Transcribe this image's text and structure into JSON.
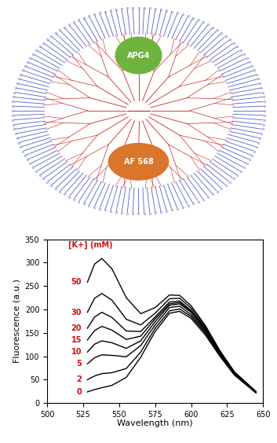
{
  "diagram": {
    "labels": [
      "APG4",
      "AF 568"
    ]
  },
  "chart_data": {
    "type": "line",
    "legend_title": "[K+] (mM)",
    "x_label": "Wavelength (nm)",
    "y_label": "Fluorescence (a.u.)",
    "x": [
      528,
      533,
      538,
      545,
      555,
      565,
      575,
      585,
      592,
      600,
      610,
      620,
      630,
      645
    ],
    "series": [
      {
        "name": "50",
        "color": "#000000",
        "values": [
          258,
          297,
          309,
          287,
          225,
          191,
          204,
          231,
          230,
          208,
          165,
          112,
          67,
          25
        ]
      },
      {
        "name": "30",
        "color": "#000000",
        "values": [
          194,
          224,
          234,
          220,
          179,
          167,
          192,
          223,
          224,
          203,
          162,
          110,
          66,
          24
        ]
      },
      {
        "name": "20",
        "color": "#000000",
        "values": [
          160,
          184,
          194,
          183,
          154,
          153,
          184,
          216,
          218,
          198,
          159,
          108,
          65,
          24
        ]
      },
      {
        "name": "15",
        "color": "#000000",
        "values": [
          135,
          155,
          164,
          156,
          136,
          143,
          180,
          212,
          215,
          196,
          157,
          107,
          64,
          24
        ]
      },
      {
        "name": "10",
        "color": "#000000",
        "values": [
          109,
          126,
          133,
          129,
          117,
          133,
          174,
          209,
          212,
          194,
          155,
          106,
          64,
          23
        ]
      },
      {
        "name": "5",
        "color": "#000000",
        "values": [
          84,
          97,
          103,
          102,
          99,
          123,
          167,
          204,
          207,
          189,
          152,
          104,
          62,
          23
        ]
      },
      {
        "name": "2",
        "color": "#000000",
        "values": [
          50,
          58,
          63,
          65,
          74,
          109,
          160,
          197,
          201,
          185,
          149,
          102,
          61,
          22
        ]
      },
      {
        "name": "0",
        "color": "#000000",
        "values": [
          24,
          29,
          33,
          38,
          55,
          98,
          153,
          192,
          196,
          181,
          145,
          100,
          60,
          22
        ]
      }
    ],
    "xlim": [
      500,
      650
    ],
    "xticks": [
      500,
      525,
      550,
      575,
      600,
      625,
      650
    ],
    "ylim": [
      0,
      350
    ],
    "yticks": [
      0,
      50,
      100,
      150,
      200,
      250,
      300,
      350
    ],
    "grid": false
  }
}
